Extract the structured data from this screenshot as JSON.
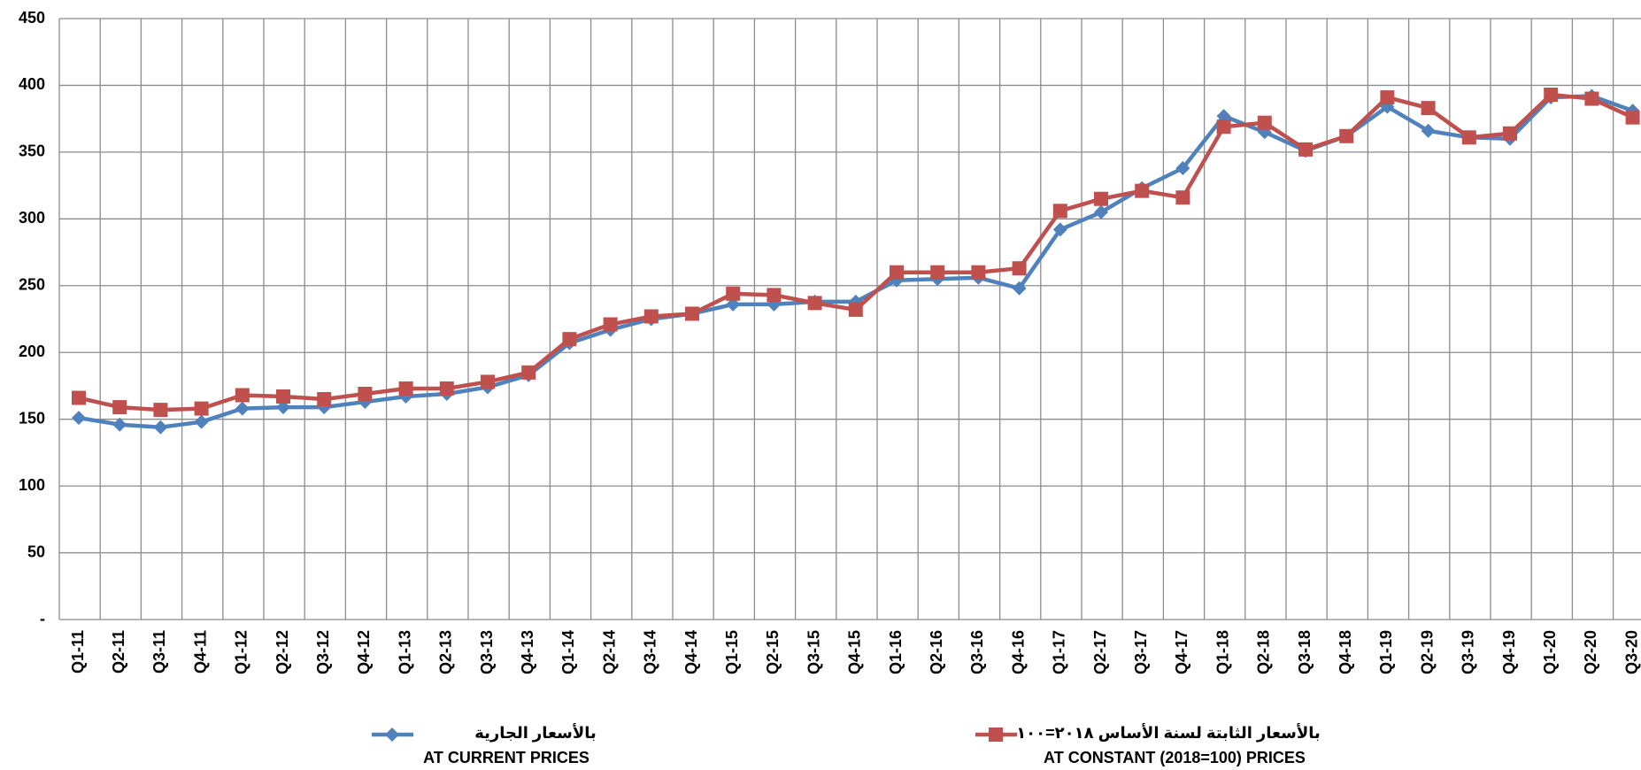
{
  "chart_data": {
    "type": "line",
    "categories": [
      "Q1-11",
      "Q2-11",
      "Q3-11",
      "Q4-11",
      "Q1-12",
      "Q2-12",
      "Q3-12",
      "Q4-12",
      "Q1-13",
      "Q2-13",
      "Q3-13",
      "Q4-13",
      "Q1-14",
      "Q2-14",
      "Q3-14",
      "Q4-14",
      "Q1-15",
      "Q2-15",
      "Q3-15",
      "Q4-15",
      "Q1-16",
      "Q2-16",
      "Q3-16",
      "Q4-16",
      "Q1-17",
      "Q2-17",
      "Q3-17",
      "Q4-17",
      "Q1-18",
      "Q2-18",
      "Q3-18",
      "Q4-18",
      "Q1-19",
      "Q2-19",
      "Q3-19",
      "Q4-19",
      "Q1-20",
      "Q2-20",
      "Q3-20"
    ],
    "series": [
      {
        "name": "بالأسعار  الجارية",
        "label_en": "AT CURRENT PRICES",
        "color": "#4f81bd",
        "marker": "diamond",
        "values": [
          151,
          146,
          144,
          148,
          158,
          159,
          159,
          163,
          167,
          169,
          174,
          183,
          207,
          217,
          225,
          229,
          236,
          236,
          238,
          238,
          254,
          255,
          256,
          248,
          292,
          305,
          323,
          338,
          377,
          365,
          351,
          362,
          384,
          366,
          361,
          360,
          391,
          392,
          381
        ]
      },
      {
        "name": "بالأسعار الثابتة لسنة الأساس ٢٠١٨=١٠٠",
        "label_en": "AT CONSTANT (2018=100) PRICES",
        "color": "#c0504d",
        "marker": "square",
        "values": [
          166,
          159,
          157,
          158,
          168,
          167,
          165,
          169,
          173,
          173,
          178,
          185,
          210,
          221,
          227,
          229,
          244,
          243,
          237,
          232,
          260,
          260,
          260,
          263,
          306,
          315,
          321,
          316,
          369,
          372,
          352,
          362,
          391,
          383,
          361,
          364,
          393,
          390,
          376
        ]
      }
    ],
    "ylim": [
      0,
      450
    ],
    "yticks": [
      {
        "value": 0,
        "label": "-"
      },
      50,
      100,
      150,
      200,
      250,
      300,
      350,
      400,
      450
    ],
    "grid": true
  }
}
